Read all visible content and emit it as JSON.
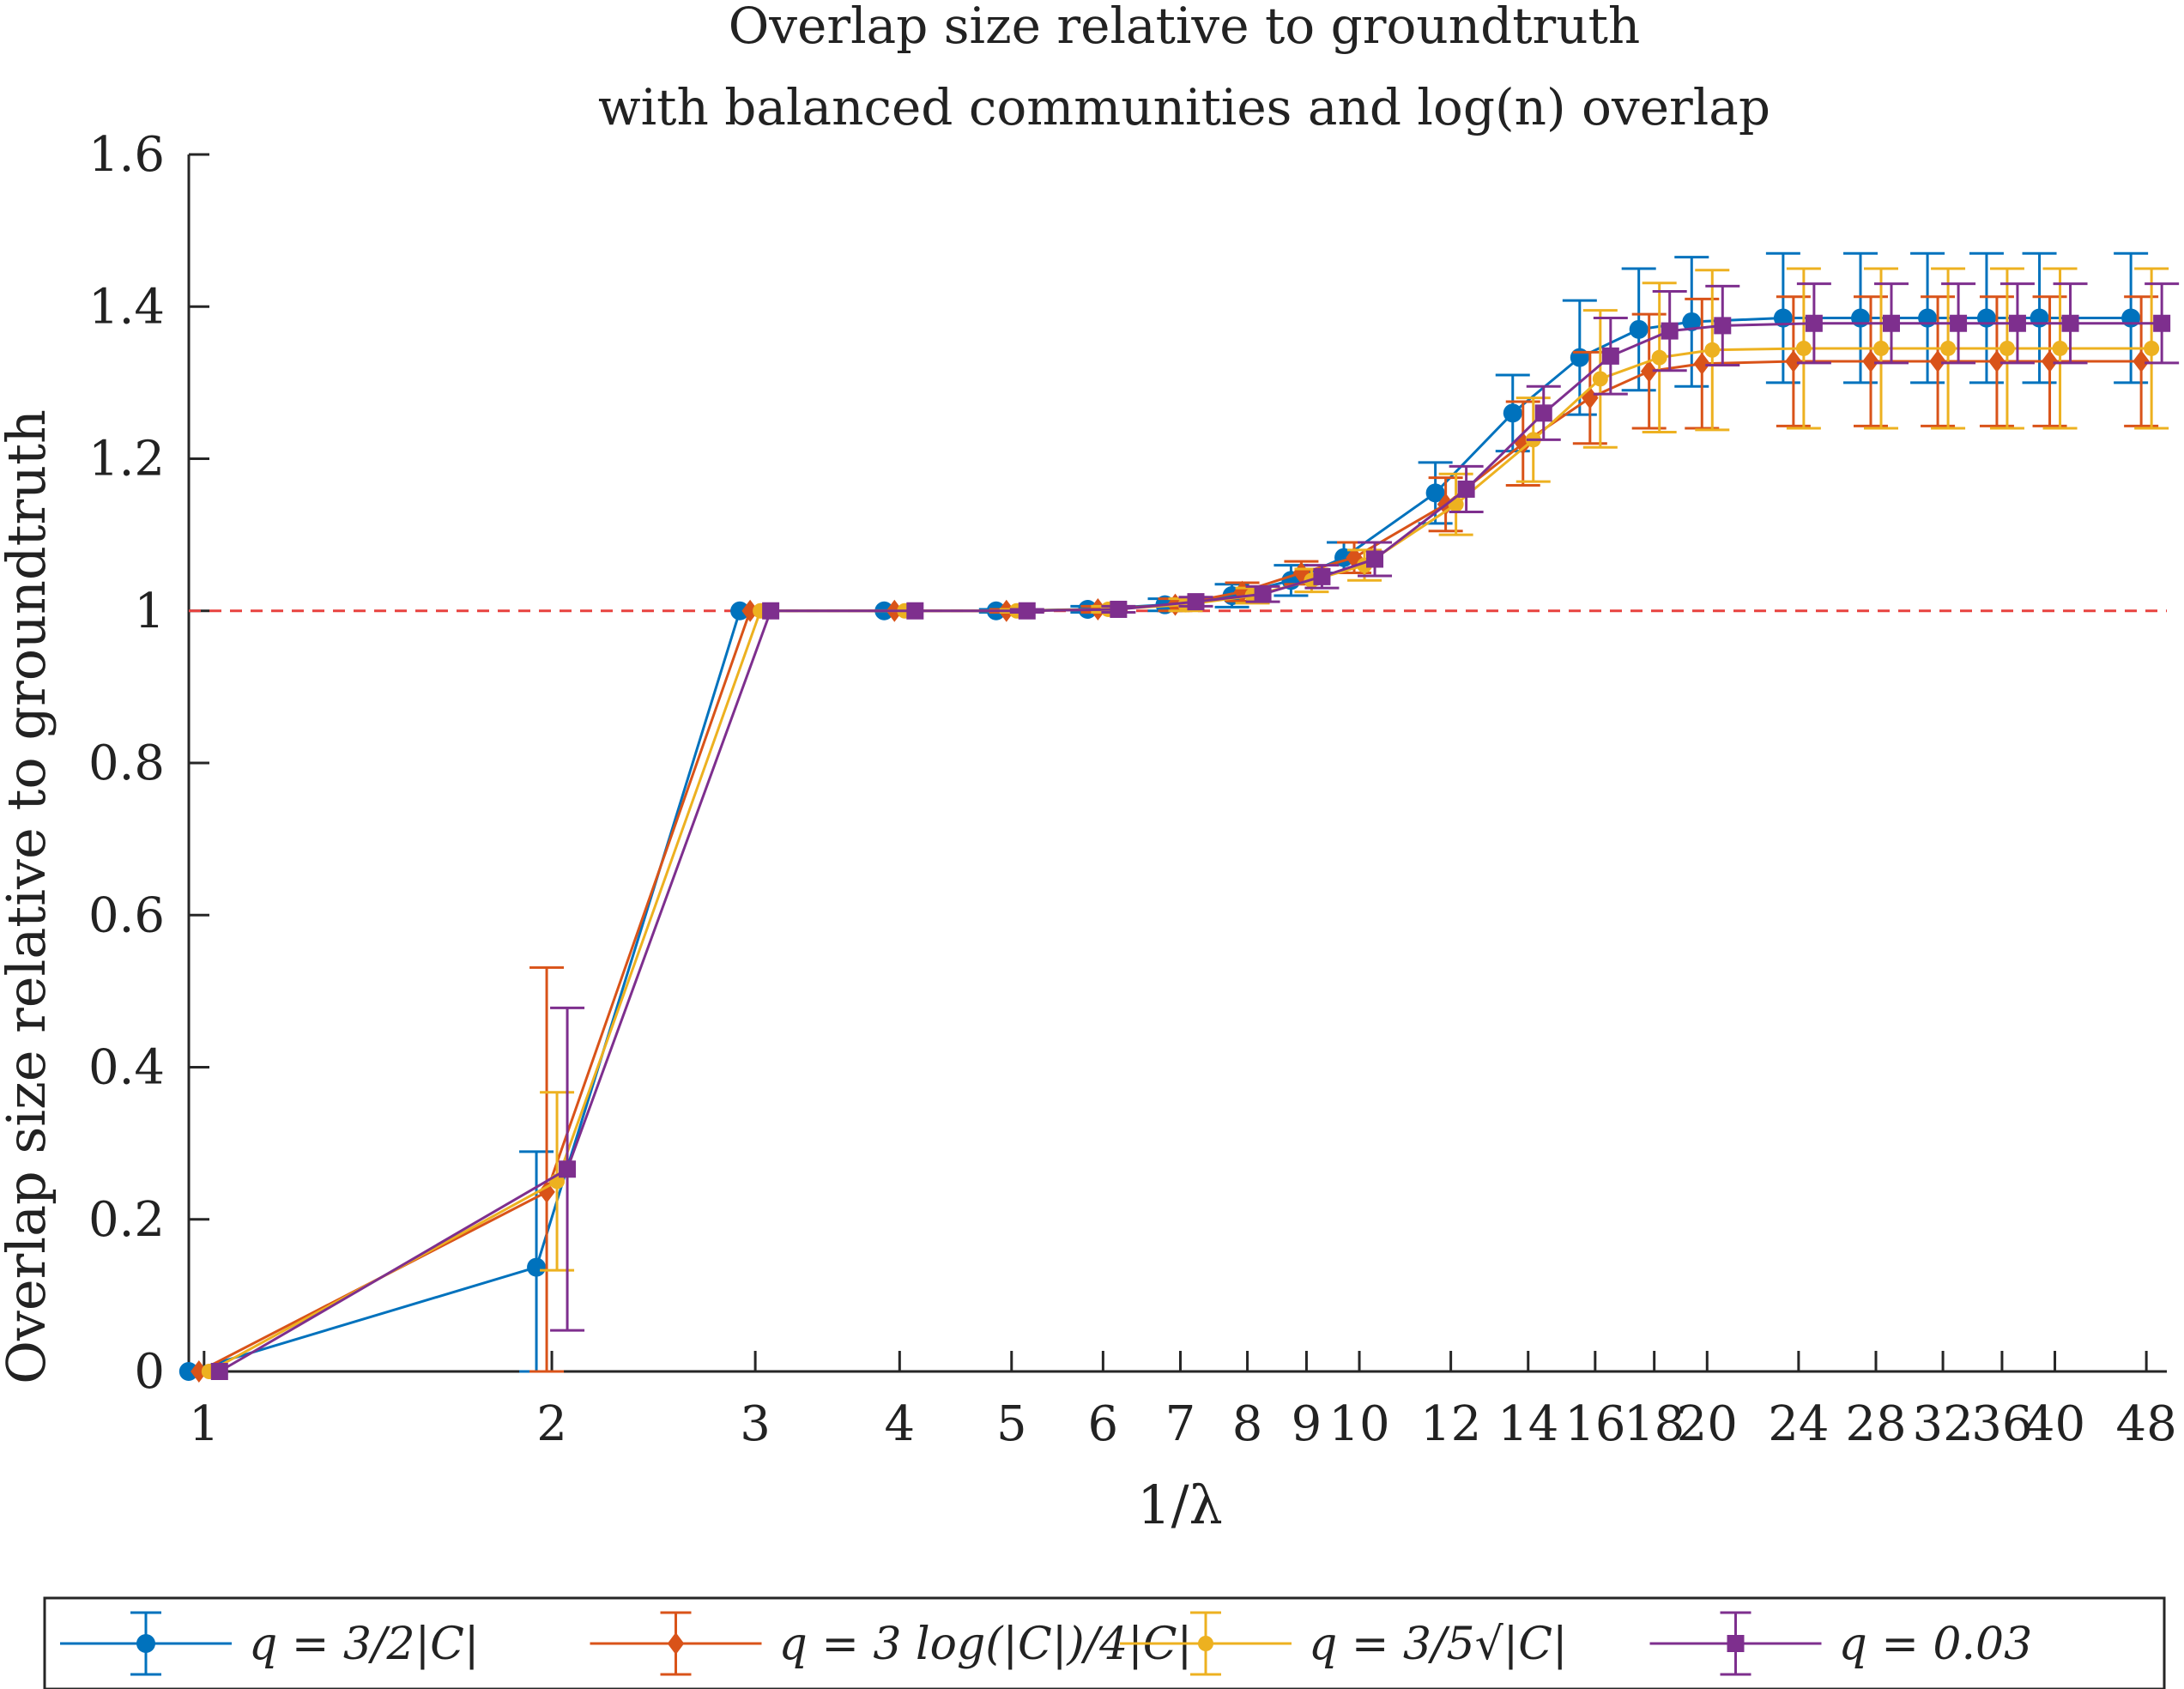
{
  "chart_data": {
    "type": "line",
    "title_line1": "Overlap size relative to groundtruth",
    "title_line2": "with balanced communities and log(n) overlap",
    "xlabel": "1/λ",
    "ylabel": "Overlap size relative to groundtruth",
    "x_scale": "log",
    "xlim": [
      0.97,
      50
    ],
    "ylim": [
      0,
      1.6
    ],
    "x_ticks": [
      1,
      2,
      3,
      4,
      5,
      6,
      7,
      8,
      9,
      10,
      12,
      14,
      16,
      18,
      20,
      24,
      28,
      32,
      36,
      40,
      48
    ],
    "x_tick_labels": [
      "1",
      "2",
      "3",
      "4",
      "5",
      "6",
      "7",
      "8",
      "9",
      "10",
      "12",
      "14",
      "16",
      "18",
      "20",
      "24",
      "28",
      "32",
      "36",
      "40",
      "48"
    ],
    "y_ticks": [
      0,
      0.2,
      0.4,
      0.6,
      0.8,
      1,
      1.2,
      1.4,
      1.6
    ],
    "y_tick_labels": [
      "0",
      "0.2",
      "0.4",
      "0.6",
      "0.8",
      "1",
      "1.2",
      "1.4",
      "1.6"
    ],
    "grid": false,
    "legend_position": "bottom",
    "reference_line": {
      "y": 1,
      "color": "#e8423f",
      "style": "dashed"
    },
    "x": [
      1,
      2,
      3,
      4,
      5,
      6,
      7,
      8,
      9,
      10,
      12,
      14,
      16,
      18,
      20,
      24,
      28,
      32,
      36,
      40,
      48
    ],
    "series": [
      {
        "name": "q = 3/2|C|",
        "color": "#0072bd",
        "marker": "circle",
        "y": [
          0,
          0.137,
          1.0,
          1.0,
          1.0,
          1.002,
          1.008,
          1.02,
          1.04,
          1.07,
          1.155,
          1.26,
          1.333,
          1.37,
          1.38,
          1.385,
          1.385,
          1.385,
          1.385,
          1.385,
          1.385
        ],
        "err": [
          0,
          0.152,
          0,
          0,
          0.002,
          0.004,
          0.008,
          0.015,
          0.02,
          0.02,
          0.04,
          0.05,
          0.075,
          0.08,
          0.085,
          0.085,
          0.085,
          0.085,
          0.085,
          0.085,
          0.085
        ]
      },
      {
        "name": "q = 3 log(|C|)/4|C|",
        "color": "#d95319",
        "marker": "diamond",
        "y": [
          0,
          0.236,
          1.0,
          1.0,
          1.0,
          1.002,
          1.008,
          1.025,
          1.05,
          1.07,
          1.14,
          1.22,
          1.28,
          1.315,
          1.325,
          1.328,
          1.328,
          1.328,
          1.328,
          1.328,
          1.328
        ],
        "err": [
          0,
          0.295,
          0,
          0,
          0.002,
          0.004,
          0.008,
          0.012,
          0.015,
          0.02,
          0.035,
          0.055,
          0.06,
          0.075,
          0.085,
          0.085,
          0.085,
          0.085,
          0.085,
          0.085,
          0.085
        ]
      },
      {
        "name": "q = 3/5√|C|",
        "color": "#edb120",
        "marker": "circle-small",
        "y": [
          0,
          0.25,
          1.0,
          1.0,
          1.0,
          1.002,
          1.008,
          1.02,
          1.04,
          1.06,
          1.14,
          1.225,
          1.305,
          1.333,
          1.343,
          1.345,
          1.345,
          1.345,
          1.345,
          1.345,
          1.345
        ],
        "err": [
          0,
          0.117,
          0,
          0,
          0.002,
          0.004,
          0.008,
          0.01,
          0.015,
          0.02,
          0.04,
          0.055,
          0.09,
          0.098,
          0.105,
          0.105,
          0.105,
          0.105,
          0.105,
          0.105,
          0.105
        ]
      },
      {
        "name": "q = 0.03",
        "color": "#7e2f8e",
        "marker": "square",
        "y": [
          0,
          0.266,
          1.0,
          1.0,
          1.0,
          1.002,
          1.012,
          1.022,
          1.045,
          1.068,
          1.16,
          1.26,
          1.335,
          1.368,
          1.375,
          1.378,
          1.378,
          1.378,
          1.378,
          1.378,
          1.378
        ],
        "err": [
          0,
          0.212,
          0,
          0,
          0.002,
          0.004,
          0.006,
          0.01,
          0.015,
          0.022,
          0.03,
          0.035,
          0.05,
          0.052,
          0.052,
          0.052,
          0.052,
          0.052,
          0.052,
          0.052,
          0.052
        ]
      }
    ]
  }
}
